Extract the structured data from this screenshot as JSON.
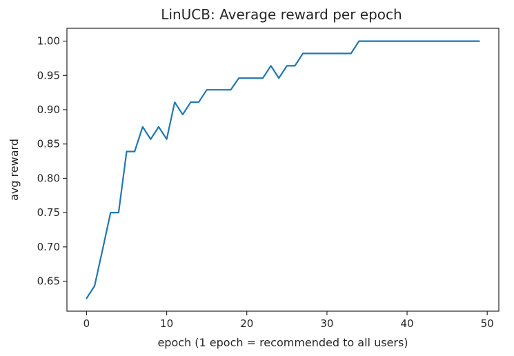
{
  "chart_data": {
    "type": "line",
    "title": "LinUCB: Average reward per epoch",
    "xlabel": "epoch (1 epoch = recommended to all users)",
    "ylabel": "avg reward",
    "xlim": [
      -2.45,
      51.45
    ],
    "ylim": [
      0.6063,
      1.0187
    ],
    "xticks": [
      0,
      10,
      20,
      30,
      40,
      50
    ],
    "yticks": [
      0.65,
      0.7,
      0.75,
      0.8,
      0.85,
      0.9,
      0.95,
      1.0
    ],
    "ytick_decimals": 2,
    "grid": false,
    "line_color": "#1f77b4",
    "series": [
      {
        "x": [
          0,
          1,
          2,
          3,
          4,
          5,
          6,
          7,
          8,
          9,
          10,
          11,
          12,
          13,
          14,
          15,
          16,
          17,
          18,
          19,
          20,
          21,
          22,
          23,
          24,
          25,
          26,
          27,
          28,
          29,
          30,
          31,
          32,
          33,
          34,
          35,
          36,
          37,
          38,
          39,
          40,
          41,
          42,
          43,
          44,
          45,
          46,
          47,
          48,
          49
        ],
        "values": [
          0.625,
          0.643,
          0.696,
          0.75,
          0.75,
          0.839,
          0.839,
          0.875,
          0.857,
          0.875,
          0.857,
          0.911,
          0.893,
          0.911,
          0.911,
          0.929,
          0.929,
          0.929,
          0.929,
          0.946,
          0.946,
          0.946,
          0.946,
          0.964,
          0.946,
          0.964,
          0.964,
          0.982,
          0.982,
          0.982,
          0.982,
          0.982,
          0.982,
          0.982,
          1.0,
          1.0,
          1.0,
          1.0,
          1.0,
          1.0,
          1.0,
          1.0,
          1.0,
          1.0,
          1.0,
          1.0,
          1.0,
          1.0,
          1.0,
          1.0
        ]
      }
    ]
  }
}
